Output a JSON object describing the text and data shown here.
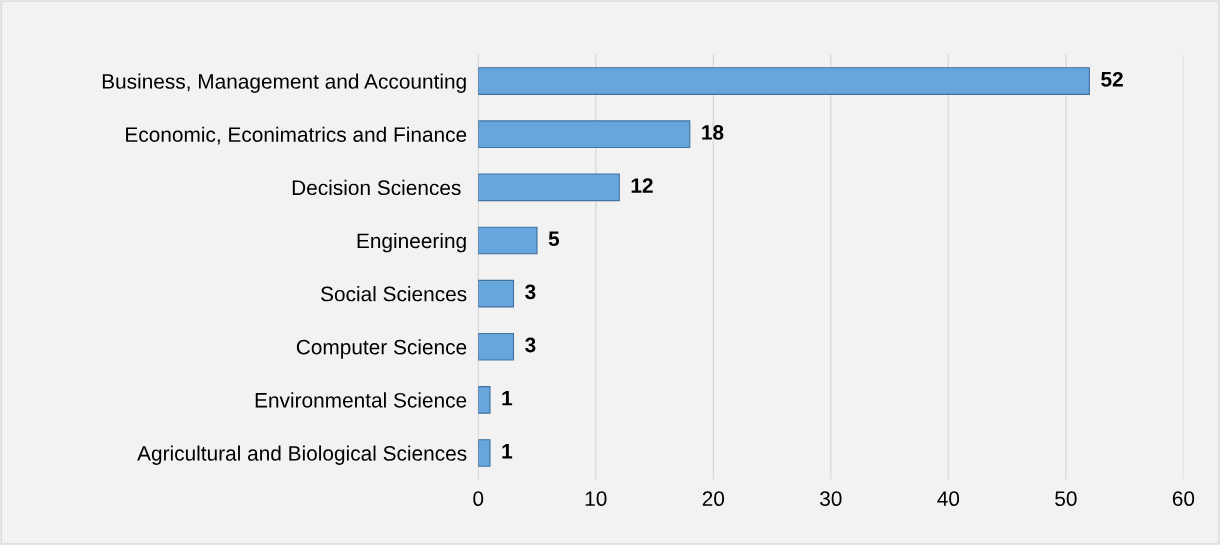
{
  "chart_data": {
    "type": "bar",
    "orientation": "horizontal",
    "categories": [
      "Business, Management and Accounting",
      "Economic, Econimatrics and Finance",
      "Decision Sciences ",
      "Engineering",
      "Social Sciences",
      "Computer Science",
      "Environmental Science",
      "Agricultural and Biological Sciences"
    ],
    "values": [
      52,
      18,
      12,
      5,
      3,
      3,
      1,
      1
    ],
    "color": "#66a6dc",
    "xlim": [
      0,
      60
    ],
    "xticks": [
      0,
      10,
      20,
      30,
      40,
      50,
      60
    ],
    "grid": "x",
    "data_labels": true,
    "legend": false
  }
}
